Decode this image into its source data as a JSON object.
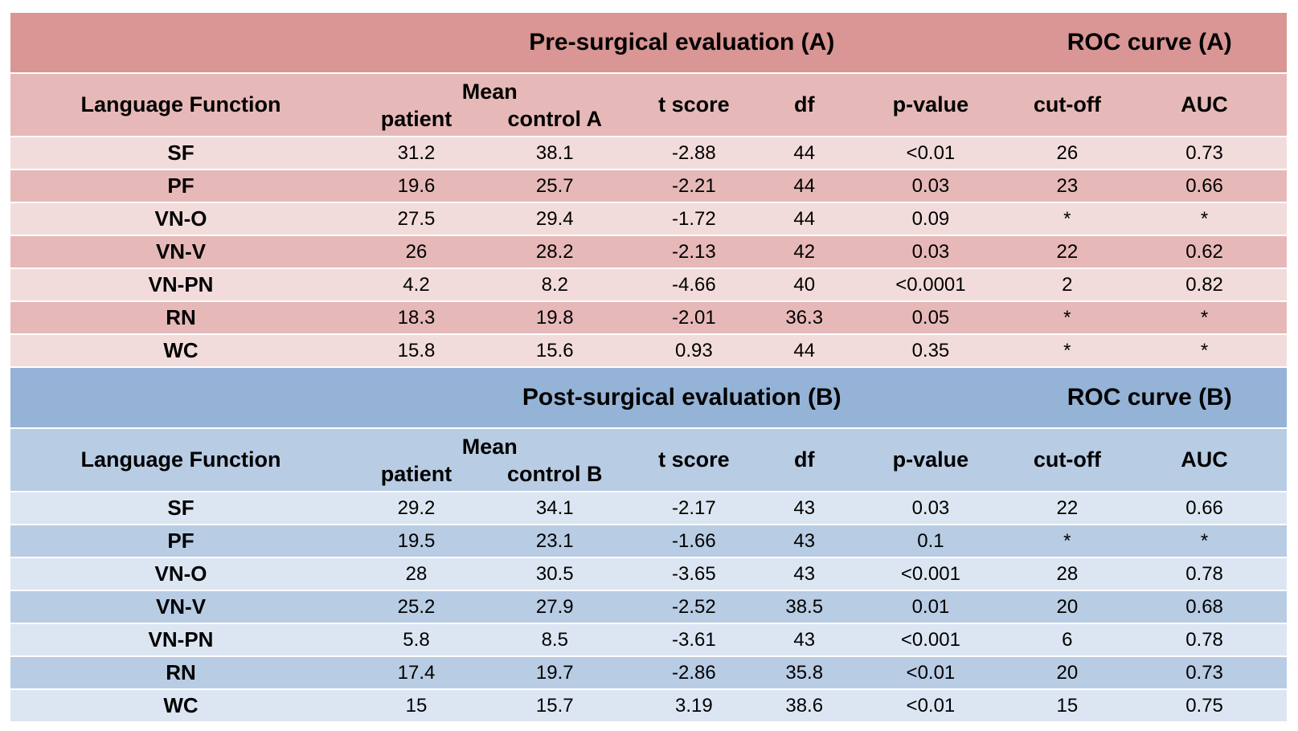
{
  "table": {
    "sections": [
      {
        "id": "pre-surgical",
        "colors": {
          "band": "#D99694",
          "header": "#E6B9B8",
          "light": "#F2DCDB",
          "dark": "#E6B9B8"
        },
        "band": {
          "title": "Pre-surgical evaluation (A)",
          "roc_title": "ROC curve (A)"
        },
        "columns": {
          "language_function": "Language Function",
          "mean": "Mean",
          "patient": "patient",
          "control": "control A",
          "t_score": "t score",
          "df": "df",
          "p_value": "p-value",
          "cut_off": "cut-off",
          "auc": "AUC"
        },
        "rows": [
          [
            "SF",
            "31.2",
            "38.1",
            "-2.88",
            "44",
            "<0.01",
            "26",
            "0.73"
          ],
          [
            "PF",
            "19.6",
            "25.7",
            "-2.21",
            "44",
            "0.03",
            "23",
            "0.66"
          ],
          [
            "VN-O",
            "27.5",
            "29.4",
            "-1.72",
            "44",
            "0.09",
            "*",
            "*"
          ],
          [
            "VN-V",
            "26",
            "28.2",
            "-2.13",
            "42",
            "0.03",
            "22",
            "0.62"
          ],
          [
            "VN-PN",
            "4.2",
            "8.2",
            "-4.66",
            "40",
            "<0.0001",
            "2",
            "0.82"
          ],
          [
            "RN",
            "18.3",
            "19.8",
            "-2.01",
            "36.3",
            "0.05",
            "*",
            "*"
          ],
          [
            "WC",
            "15.8",
            "15.6",
            "0.93",
            "44",
            "0.35",
            "*",
            "*"
          ]
        ]
      },
      {
        "id": "post-surgical",
        "colors": {
          "band": "#95B3D7",
          "header": "#B8CCE4",
          "light": "#DCE6F2",
          "dark": "#B8CCE4"
        },
        "band": {
          "title": "Post-surgical evaluation (B)",
          "roc_title": "ROC curve (B)"
        },
        "columns": {
          "language_function": "Language Function",
          "mean": "Mean",
          "patient": "patient",
          "control": "control B",
          "t_score": "t score",
          "df": "df",
          "p_value": "p-value",
          "cut_off": "cut-off",
          "auc": "AUC"
        },
        "rows": [
          [
            "SF",
            "29.2",
            "34.1",
            "-2.17",
            "43",
            "0.03",
            "22",
            "0.66"
          ],
          [
            "PF",
            "19.5",
            "23.1",
            "-1.66",
            "43",
            "0.1",
            "*",
            "*"
          ],
          [
            "VN-O",
            "28",
            "30.5",
            "-3.65",
            "43",
            "<0.001",
            "28",
            "0.78"
          ],
          [
            "VN-V",
            "25.2",
            "27.9",
            "-2.52",
            "38.5",
            "0.01",
            "20",
            "0.68"
          ],
          [
            "VN-PN",
            "5.8",
            "8.5",
            "-3.61",
            "43",
            "<0.001",
            "6",
            "0.78"
          ],
          [
            "RN",
            "17.4",
            "19.7",
            "-2.86",
            "35.8",
            "<0.01",
            "20",
            "0.73"
          ],
          [
            "WC",
            "15",
            "15.7",
            "3.19",
            "38.6",
            "<0.01",
            "15",
            "0.75"
          ]
        ]
      }
    ]
  }
}
